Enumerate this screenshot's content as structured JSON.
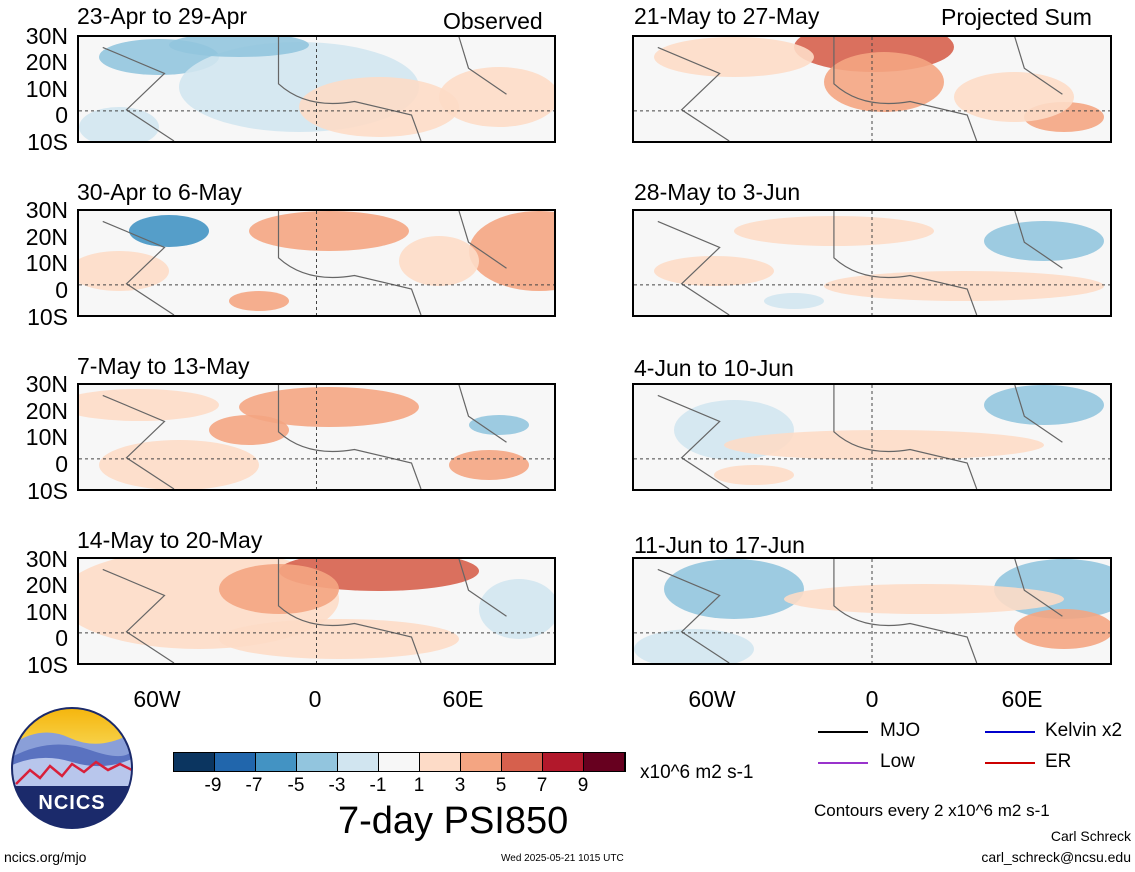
{
  "headers": {
    "left": "Observed",
    "right": "Projected Sum"
  },
  "left_panels": [
    {
      "title": "23-Apr to 29-Apr"
    },
    {
      "title": "30-Apr to 6-May"
    },
    {
      "title": "7-May to 13-May"
    },
    {
      "title": "14-May to 20-May"
    }
  ],
  "right_panels": [
    {
      "title": "21-May to 27-May"
    },
    {
      "title": "28-May to 3-Jun"
    },
    {
      "title": "4-Jun to 10-Jun"
    },
    {
      "title": "11-Jun to 17-Jun"
    }
  ],
  "lat_labels": [
    "30N",
    "20N",
    "10N",
    "0",
    "10S"
  ],
  "lon_labels": [
    "60W",
    "0",
    "60E"
  ],
  "colorbar": {
    "colors": [
      "#0b3560",
      "#2166ac",
      "#4393c3",
      "#92c5de",
      "#d1e5f0",
      "#f7f7f7",
      "#fddbc7",
      "#f4a582",
      "#d6604d",
      "#b2182b",
      "#67001f"
    ],
    "labels": [
      "-9",
      "-7",
      "-5",
      "-3",
      "-1",
      "1",
      "3",
      "5",
      "7",
      "9"
    ],
    "units": "x10^6 m2 s-1"
  },
  "title": "7-day PSI850",
  "legend": [
    {
      "label": "MJO",
      "color": "#000000"
    },
    {
      "label": "Kelvin x2",
      "color": "#0000cc"
    },
    {
      "label": "Low",
      "color": "#9933cc"
    },
    {
      "label": "ER",
      "color": "#cc0000"
    }
  ],
  "contour_note": "Contours every 2 x10^6 m2 s-1",
  "author": "Carl Schreck",
  "email": "carl_schreck@ncsu.edu",
  "website": "ncics.org/mjo",
  "timestamp": "Wed 2025-05-21 1015 UTC",
  "logo_text": "NCICS"
}
